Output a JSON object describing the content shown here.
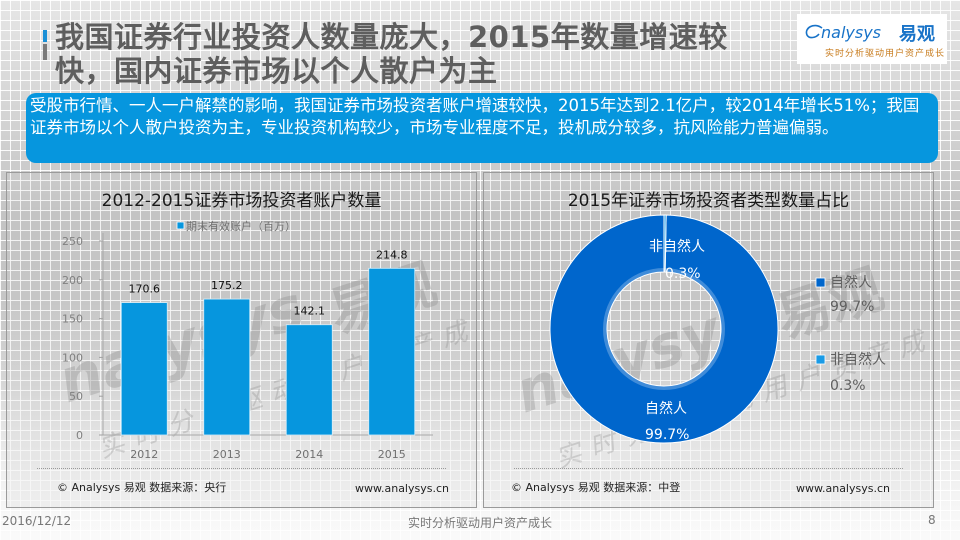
{
  "header": {
    "title_line1": "我国证券行业投资人数量庞大，2015年数量增速较",
    "title_line2": "快，国内证券市场以个人散户为主",
    "logo": {
      "brand": "nalysys",
      "brand_prefix": "A",
      "brand_cn": "易观",
      "slogan": "实时分析驱动用户资产成长"
    }
  },
  "summary": {
    "text": "受股市行情、一人一户解禁的影响，我国证券市场投资者账户增速较快，2015年达到2.1亿户，较2014年增长51%；我国证券市场以个人散户投资为主，专业投资机构较少，市场专业程度不足，投机成分较多，抗风险能力普遍偏弱。"
  },
  "colors": {
    "bar": "#0696de",
    "natural": "#0066cc",
    "non_natural": "#1a9be6",
    "summary_bg": "#0696de"
  },
  "chart_data": [
    {
      "type": "bar",
      "title": "2012-2015证券市场投资者账户数量",
      "legend": "期末有效账户（百万）",
      "legend_position": "top",
      "categories": [
        "2012",
        "2013",
        "2014",
        "2015"
      ],
      "values": [
        170.6,
        175.2,
        142.1,
        214.8
      ],
      "value_labels": [
        "170.6",
        "175.2",
        "142.1",
        "214.8"
      ],
      "yticks": [
        0,
        50,
        100,
        150,
        200,
        250
      ],
      "ytick_labels": [
        "0",
        "50",
        "100",
        "150",
        "200",
        "250"
      ],
      "ylim": [
        0,
        250
      ],
      "xlabel": "",
      "ylabel": "",
      "footer_source": "© Analysys 易观   数据来源：央行",
      "footer_url": "www.analysys.cn"
    },
    {
      "type": "pie",
      "donut": true,
      "title": "2015年证券市场投资者类型数量占比",
      "legend_position": "right",
      "slices": [
        {
          "name": "自然人",
          "value": 99.7,
          "label": "99.7%"
        },
        {
          "name": "非自然人",
          "value": 0.3,
          "label": "0.3%"
        }
      ],
      "footer_source": "© Analysys 易观   数据来源：中登",
      "footer_url": "www.analysys.cn"
    }
  ],
  "watermark": {
    "brand": "nalysys",
    "brand_cn": "易观",
    "slogan": "实时分析驱动用户资产成长"
  },
  "footer": {
    "date": "2016/12/12",
    "slogan": "实时分析驱动用户资产成长",
    "page": "8"
  }
}
